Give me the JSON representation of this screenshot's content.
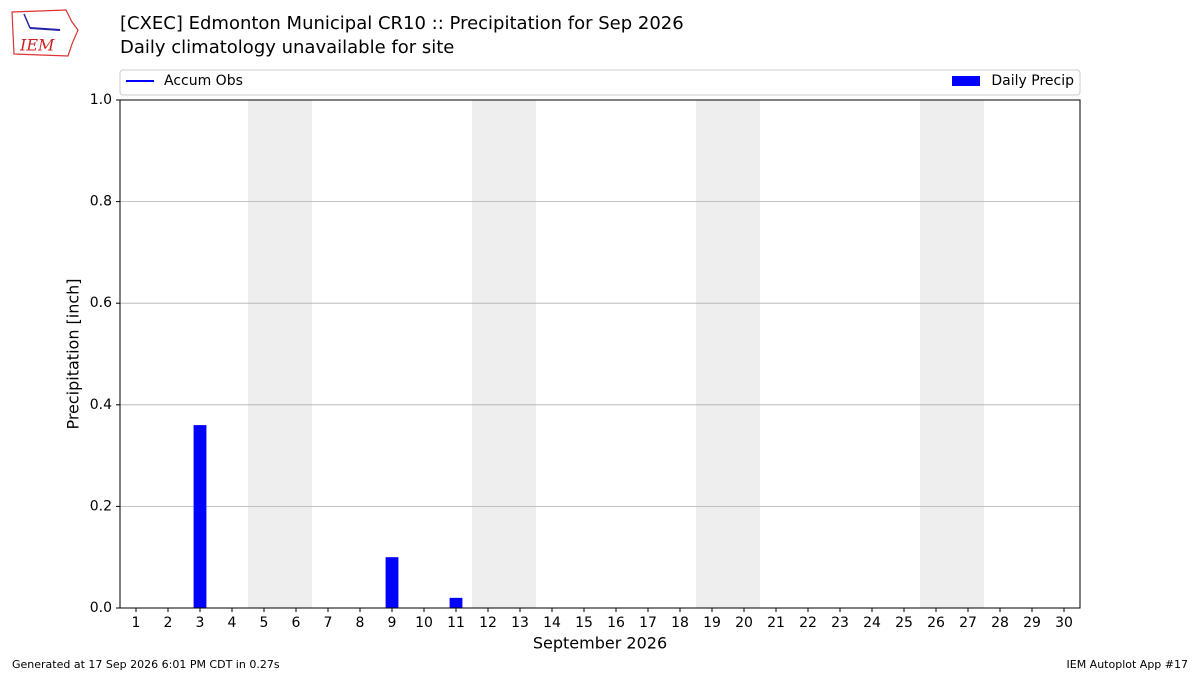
{
  "logo": "IEM",
  "footer": {
    "left": "Generated at 17 Sep 2026 6:01 PM CDT in 0.27s",
    "right": "IEM Autoplot App #17"
  },
  "chart_data": {
    "type": "bar",
    "title": "[CXEC] Edmonton Municipal CR10 :: Precipitation for Sep 2026",
    "subtitle": "Daily climatology unavailable for site",
    "xlabel": "September 2026",
    "ylabel": "Precipitation [inch]",
    "categories": [
      "1",
      "2",
      "3",
      "4",
      "5",
      "6",
      "7",
      "8",
      "9",
      "10",
      "11",
      "12",
      "13",
      "14",
      "15",
      "16",
      "17",
      "18",
      "19",
      "20",
      "21",
      "22",
      "23",
      "24",
      "25",
      "26",
      "27",
      "28",
      "29",
      "30"
    ],
    "weekend_days": [
      4,
      5,
      11,
      12,
      18,
      19,
      25,
      26
    ],
    "series": [
      {
        "name": "Accum Obs",
        "color": "#0000ff",
        "kind": "line",
        "values": [
          null,
          null,
          null,
          null,
          null,
          null,
          null,
          null,
          null,
          null,
          null,
          null,
          null,
          null,
          null,
          null,
          null,
          null,
          null,
          null,
          null,
          null,
          null,
          null,
          null,
          null,
          null,
          null,
          null,
          null
        ]
      },
      {
        "name": "Daily Precip",
        "color": "#0000ff",
        "kind": "bar",
        "values": [
          0,
          0,
          0.36,
          0,
          0,
          0,
          0,
          0,
          0.1,
          0,
          0.02,
          0,
          0,
          0,
          0,
          0.001,
          0,
          0,
          0,
          0,
          0,
          0,
          0,
          0,
          0,
          0,
          0,
          0,
          0,
          0
        ]
      }
    ],
    "ylim": [
      0,
      1.0
    ],
    "yticks": [
      {
        "value": 0,
        "label": "0.0"
      },
      0.2,
      0.4,
      0.6,
      0.8,
      {
        "value": 1.0,
        "label": "1.0"
      }
    ],
    "grid": true
  }
}
